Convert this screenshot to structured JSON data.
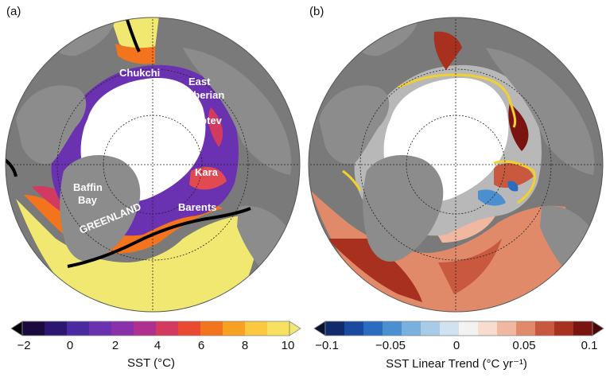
{
  "panel_a": {
    "label": "(a)",
    "regions": [
      "Chukchi",
      "East",
      "Siberian",
      "Laptev",
      "Kara",
      "Barents",
      "Baffin",
      "Bay",
      "GREENLAND"
    ],
    "colorbar": {
      "ticks": [
        "−2",
        "0",
        "2",
        "4",
        "6",
        "8",
        "10"
      ],
      "label": "SST (°C)",
      "colors": [
        "#000000",
        "#1a0a3e",
        "#2b1670",
        "#4a2aa0",
        "#6a32b0",
        "#8a30a8",
        "#b03090",
        "#d23a60",
        "#ea4a32",
        "#f3741c",
        "#f8a020",
        "#fbc840",
        "#f8e060",
        "#f0e870"
      ]
    }
  },
  "panel_b": {
    "label": "(b)",
    "colorbar": {
      "ticks": [
        "−0.1",
        "−0.05",
        "0",
        "0.05",
        "0.1"
      ],
      "label": "SST Linear Trend (°C yr⁻¹)",
      "colors": [
        "#08142e",
        "#102a6a",
        "#1a4aa0",
        "#2a6cc0",
        "#4a90d0",
        "#78b0de",
        "#a8cce8",
        "#d0e2f0",
        "#f2f2f2",
        "#f8dcd0",
        "#f0b8a0",
        "#e08a6a",
        "#c8583e",
        "#a8301e",
        "#7a1410",
        "#4a0608"
      ]
    }
  }
}
